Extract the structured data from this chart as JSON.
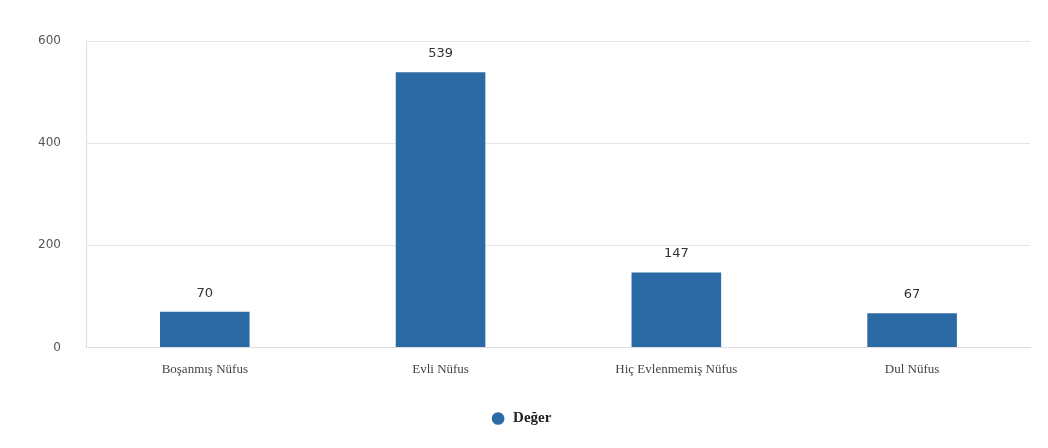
{
  "chart_data": {
    "type": "bar",
    "categories": [
      "Boşanmış Nüfus",
      "Evli Nüfus",
      "Hiç Evlenmemiş Nüfus",
      "Dul Nüfus"
    ],
    "series": [
      {
        "name": "Değer",
        "color": "#2b6aa5",
        "values": [
          70,
          539,
          147,
          67
        ]
      }
    ],
    "ylim": [
      0,
      600
    ],
    "yticks": [
      0,
      200,
      400,
      600
    ],
    "grid": "y",
    "legend": "bottom",
    "data_labels": true
  }
}
